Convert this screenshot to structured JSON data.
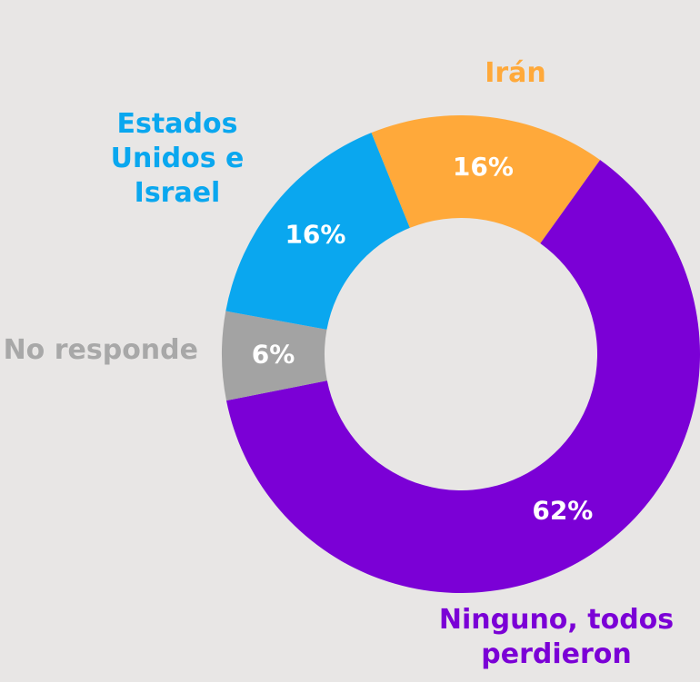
{
  "chart_data": {
    "type": "pie",
    "categories": [
      "Irán",
      "Ninguno, todos perdieron",
      "No responde",
      "Estados Unidos e Israel"
    ],
    "values": [
      16,
      62,
      6,
      16
    ],
    "value_labels": [
      "16%",
      "62%",
      "6%",
      "16%"
    ],
    "colors": [
      "#ffa93a",
      "#7b00d6",
      "#a3a3a3",
      "#0aa7ef"
    ],
    "donut": true
  }
}
